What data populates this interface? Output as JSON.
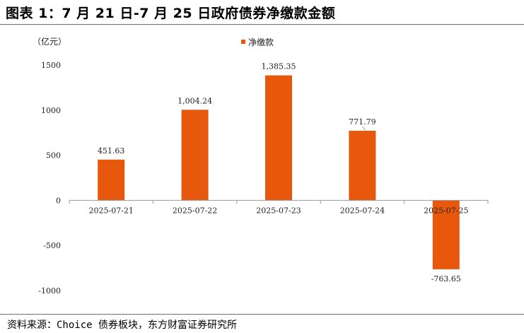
{
  "title": "图表 1：7 月 21 日-7 月 25 日政府债券净缴款金额",
  "source": "资料来源：Choice 债券板块，东方财富证券研究所",
  "chart_data": {
    "type": "bar",
    "unit": "（亿元）",
    "categories": [
      "2025-07-21",
      "2025-07-22",
      "2025-07-23",
      "2025-07-24",
      "2025-07-25"
    ],
    "series": [
      {
        "name": "净缴款",
        "color": "#e8580c",
        "values": [
          451.63,
          1004.24,
          1385.35,
          771.79,
          -763.65
        ],
        "labels": [
          "451.63",
          "1,004.24",
          "1,385.35",
          "771.79",
          "-763.65"
        ]
      }
    ],
    "ylim": [
      -1000,
      1500
    ],
    "yticks": [
      1500,
      1000,
      500,
      0,
      -500,
      -1000
    ],
    "legend_position": "top-center",
    "grid": false
  }
}
